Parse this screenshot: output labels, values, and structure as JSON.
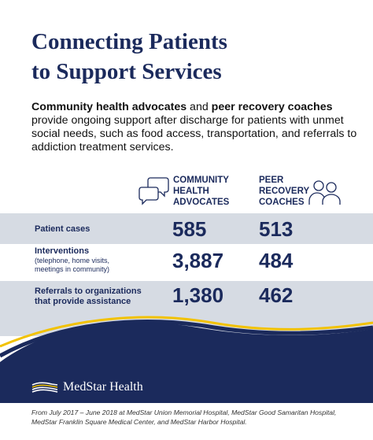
{
  "title": "Connecting Patients\nto Support Services",
  "intro": {
    "term1": "Community health advocates",
    "joiner": " and ",
    "term2": "peer recovery coaches",
    "rest": " provide ongoing support after discharge for patients with unmet social needs, such as food access, transportation, and referrals to addiction treatment services."
  },
  "columns": {
    "advocates": {
      "label": "COMMUNITY\nHEALTH\nADVOCATES",
      "icon": "speech-bubbles-icon"
    },
    "coaches": {
      "label": "PEER\nRECOVERY\nCOACHES",
      "icon": "people-icon"
    }
  },
  "rows": [
    {
      "label": "Patient cases",
      "sub": "",
      "advocates": "585",
      "coaches": "513"
    },
    {
      "label": "Interventions",
      "sub": "(telephone, home visits,\nmeetings in community)",
      "advocates": "3,887",
      "coaches": "484"
    },
    {
      "label": "Referrals to organizations\nthat provide assistance",
      "sub": "",
      "advocates": "1,380",
      "coaches": "462"
    }
  ],
  "logo": {
    "text": "MedStar Health",
    "icon": "medstar-logo-icon"
  },
  "footnote": "From July 2017 – June 2018 at MedStar Union Memorial Hospital, MedStar Good Samaritan Hospital, MedStar Franklin Square Medical Center, and MedStar Harbor Hospital.",
  "colors": {
    "navy": "#1b2a5c",
    "gold": "#f2c200",
    "row_shade": "#d6dbe3"
  }
}
